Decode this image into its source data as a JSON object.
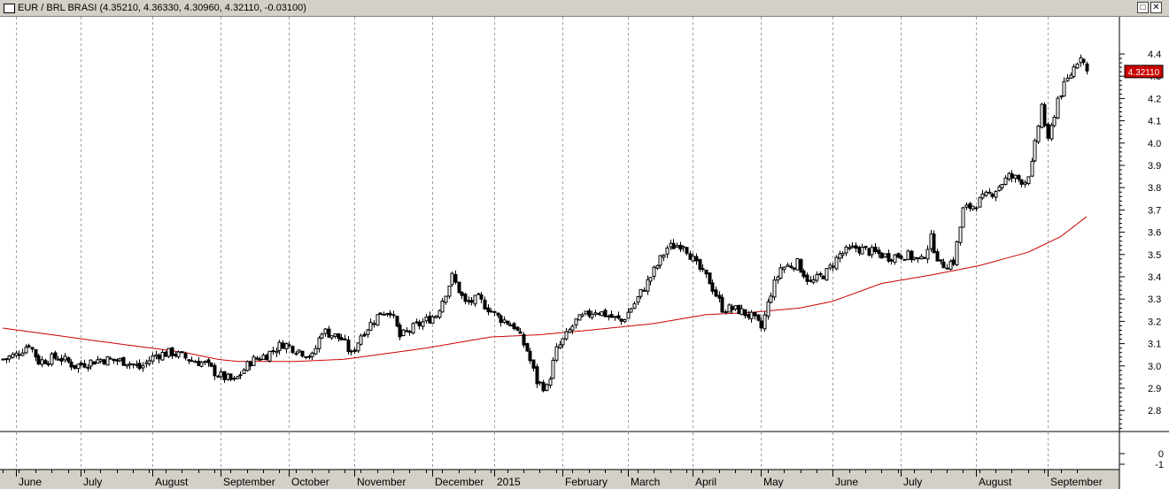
{
  "window": {
    "title": "EUR / BRL BRASI (4.35210, 4.36330, 4.30960, 4.32110, -0.03100)",
    "restore_symbol": "□",
    "close_symbol": "✕"
  },
  "colors": {
    "background": "#ffffff",
    "candle": "#000000",
    "ma_line": "#cc0000",
    "last_price_bg": "#cc0000",
    "frame": "#d4d0c8"
  },
  "chart_data": {
    "type": "candlestick",
    "title": "EUR / BRL BRASI",
    "ohlc_header": {
      "open": 4.3521,
      "high": 4.3633,
      "low": 4.3096,
      "close": 4.3211,
      "change": -0.031
    },
    "last_price_label": "4.32110",
    "x_labels": [
      "June",
      "July",
      "August",
      "September",
      "October",
      "November",
      "December",
      "2015",
      "February",
      "March",
      "April",
      "May",
      "June",
      "July",
      "August",
      "September"
    ],
    "month_start_index": [
      4,
      24,
      46,
      67,
      88,
      108,
      132,
      151,
      172,
      192,
      212,
      233,
      255,
      276,
      299,
      321
    ],
    "ylim": [
      2.7,
      4.5
    ],
    "y_ticks": [
      2.8,
      2.9,
      3.0,
      3.1,
      3.2,
      3.3,
      3.4,
      3.5,
      3.6,
      3.7,
      3.8,
      3.9,
      4.0,
      4.1,
      4.2,
      4.3,
      4.4
    ],
    "sub_ticks": [
      0,
      -1
    ],
    "price_path": [
      [
        0,
        3.03
      ],
      [
        4,
        3.05
      ],
      [
        8,
        3.1
      ],
      [
        11,
        3.02
      ],
      [
        17,
        3.04
      ],
      [
        22,
        3.0
      ],
      [
        30,
        3.03
      ],
      [
        38,
        3.02
      ],
      [
        42,
        2.99
      ],
      [
        47,
        3.05
      ],
      [
        52,
        3.06
      ],
      [
        57,
        3.03
      ],
      [
        62,
        3.01
      ],
      [
        66,
        2.96
      ],
      [
        71,
        2.93
      ],
      [
        76,
        3.02
      ],
      [
        81,
        3.05
      ],
      [
        86,
        3.1
      ],
      [
        91,
        3.07
      ],
      [
        95,
        3.04
      ],
      [
        98,
        3.16
      ],
      [
        104,
        3.12
      ],
      [
        107,
        3.05
      ],
      [
        110,
        3.14
      ],
      [
        116,
        3.24
      ],
      [
        119,
        3.25
      ],
      [
        122,
        3.13
      ],
      [
        126,
        3.17
      ],
      [
        133,
        3.23
      ],
      [
        138,
        3.4
      ],
      [
        142,
        3.28
      ],
      [
        146,
        3.3
      ],
      [
        152,
        3.22
      ],
      [
        157,
        3.18
      ],
      [
        161,
        3.07
      ],
      [
        164,
        2.93
      ],
      [
        167,
        2.9
      ],
      [
        170,
        3.07
      ],
      [
        176,
        3.2
      ],
      [
        182,
        3.25
      ],
      [
        190,
        3.2
      ],
      [
        194,
        3.28
      ],
      [
        199,
        3.4
      ],
      [
        204,
        3.53
      ],
      [
        209,
        3.55
      ],
      [
        213,
        3.45
      ],
      [
        217,
        3.38
      ],
      [
        221,
        3.26
      ],
      [
        226,
        3.25
      ],
      [
        230,
        3.22
      ],
      [
        233,
        3.17
      ],
      [
        236,
        3.33
      ],
      [
        239,
        3.44
      ],
      [
        244,
        3.46
      ],
      [
        248,
        3.37
      ],
      [
        253,
        3.42
      ],
      [
        257,
        3.5
      ],
      [
        262,
        3.53
      ],
      [
        267,
        3.51
      ],
      [
        272,
        3.49
      ],
      [
        277,
        3.5
      ],
      [
        282,
        3.47
      ],
      [
        285,
        3.57
      ],
      [
        288,
        3.45
      ],
      [
        292,
        3.47
      ],
      [
        295,
        3.7
      ],
      [
        298,
        3.72
      ],
      [
        304,
        3.78
      ],
      [
        309,
        3.85
      ],
      [
        314,
        3.83
      ],
      [
        316,
        3.9
      ],
      [
        319,
        4.17
      ],
      [
        321,
        4.0
      ],
      [
        324,
        4.2
      ],
      [
        328,
        4.31
      ],
      [
        331,
        4.4
      ],
      [
        333,
        4.32
      ]
    ],
    "ma_path": [
      [
        0,
        3.17
      ],
      [
        30,
        3.11
      ],
      [
        56,
        3.06
      ],
      [
        66,
        3.03
      ],
      [
        72,
        3.02
      ],
      [
        90,
        3.02
      ],
      [
        105,
        3.03
      ],
      [
        130,
        3.08
      ],
      [
        150,
        3.13
      ],
      [
        165,
        3.14
      ],
      [
        180,
        3.16
      ],
      [
        200,
        3.19
      ],
      [
        216,
        3.23
      ],
      [
        230,
        3.24
      ],
      [
        245,
        3.26
      ],
      [
        255,
        3.29
      ],
      [
        270,
        3.37
      ],
      [
        286,
        3.41
      ],
      [
        300,
        3.45
      ],
      [
        315,
        3.51
      ],
      [
        325,
        3.58
      ],
      [
        333,
        3.67
      ]
    ]
  }
}
